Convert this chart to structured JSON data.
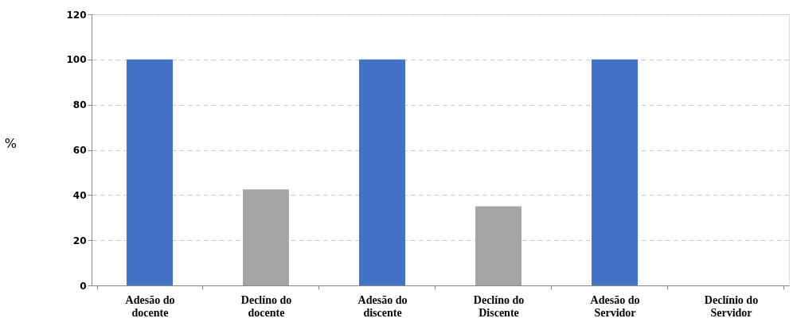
{
  "chart_data": {
    "type": "bar",
    "ylabel": "%",
    "categories": [
      "Adesão do docente",
      "Declíno do docente",
      "Adesão do discente",
      "Declíno do Discente",
      "Adesão do Servidor",
      "Declínio do Servidor"
    ],
    "values": [
      100,
      42.5,
      100,
      35,
      100,
      0
    ],
    "colors": [
      "#4472c4",
      "#a5a5a5",
      "#4472c4",
      "#a5a5a5",
      "#4472c4",
      "#a5a5a5"
    ],
    "ylim": [
      0,
      120
    ],
    "yticks": [
      0,
      20,
      40,
      60,
      80,
      100,
      120
    ],
    "grid": "y"
  }
}
